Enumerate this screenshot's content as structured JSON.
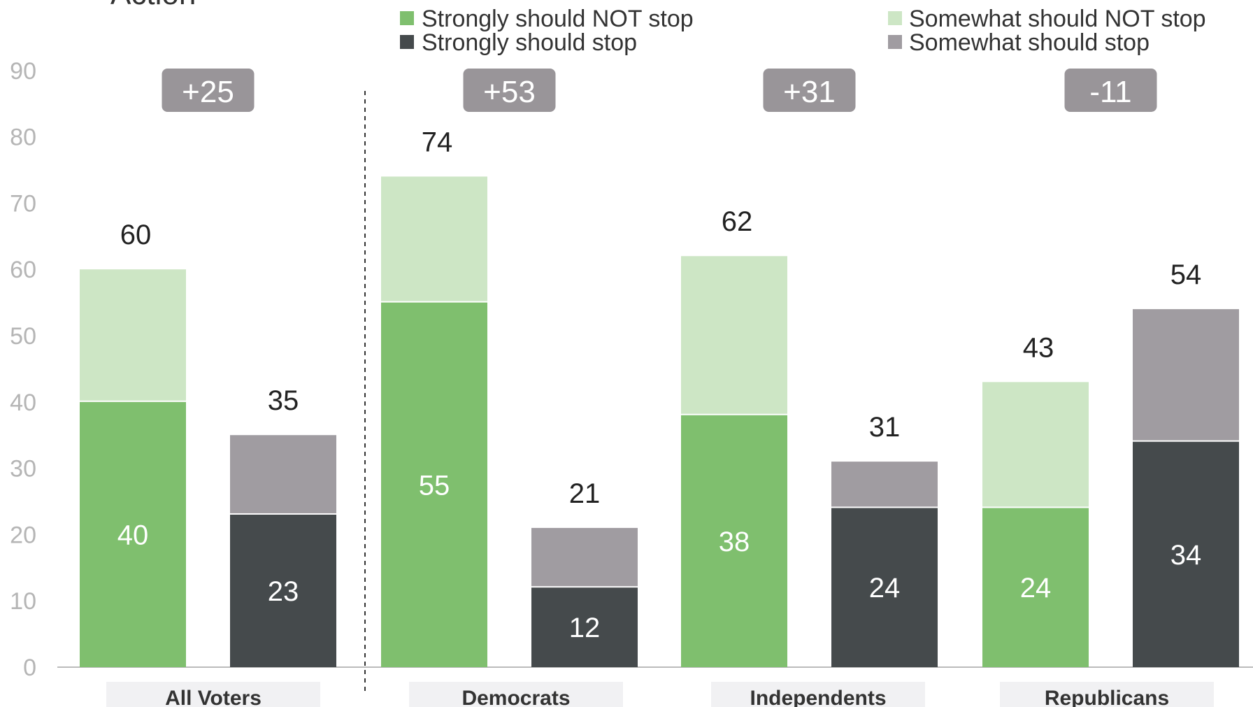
{
  "title_fragment": "Action",
  "legend": [
    {
      "name": "Strongly should NOT stop",
      "color": "#7fbf6e"
    },
    {
      "name": "Strongly should stop",
      "color": "#454a4c"
    },
    {
      "name": "Somewhat should NOT stop",
      "color": "#cde6c5"
    },
    {
      "name": "Somewhat should stop",
      "color": "#a09ca1"
    }
  ],
  "chart_data": {
    "type": "bar",
    "stacked": true,
    "categories": [
      "All Voters",
      "Democrats",
      "Independents",
      "Republicans"
    ],
    "ylim": [
      0,
      90
    ],
    "yticks": [
      0,
      10,
      20,
      30,
      40,
      50,
      60,
      70,
      80,
      90
    ],
    "margins": [
      "+25",
      "+53",
      "+31",
      "-11"
    ],
    "groups": [
      {
        "category": "All Voters",
        "not_stop": {
          "strongly": 40,
          "somewhat": 20,
          "total": 60
        },
        "stop": {
          "strongly": 23,
          "somewhat": 12,
          "total": 35
        }
      },
      {
        "category": "Democrats",
        "not_stop": {
          "strongly": 55,
          "somewhat": 19,
          "total": 74
        },
        "stop": {
          "strongly": 12,
          "somewhat": 10,
          "total": 21
        }
      },
      {
        "category": "Independents",
        "not_stop": {
          "strongly": 38,
          "somewhat": 23,
          "total": 62
        },
        "stop": {
          "strongly": 24,
          "somewhat": 7,
          "total": 31
        }
      },
      {
        "category": "Republicans",
        "not_stop": {
          "strongly": 24,
          "somewhat": 19,
          "total": 43
        },
        "stop": {
          "strongly": 34,
          "somewhat": 20,
          "total": 54
        }
      }
    ],
    "colors": {
      "strongly_not_stop": "#7fbf6e",
      "somewhat_not_stop": "#cde6c5",
      "strongly_stop": "#454a4c",
      "somewhat_stop": "#a09ca1",
      "margin_box": "#999599",
      "group_label_bg": "#f1f1f3",
      "axis": "#bbbbbb"
    }
  }
}
